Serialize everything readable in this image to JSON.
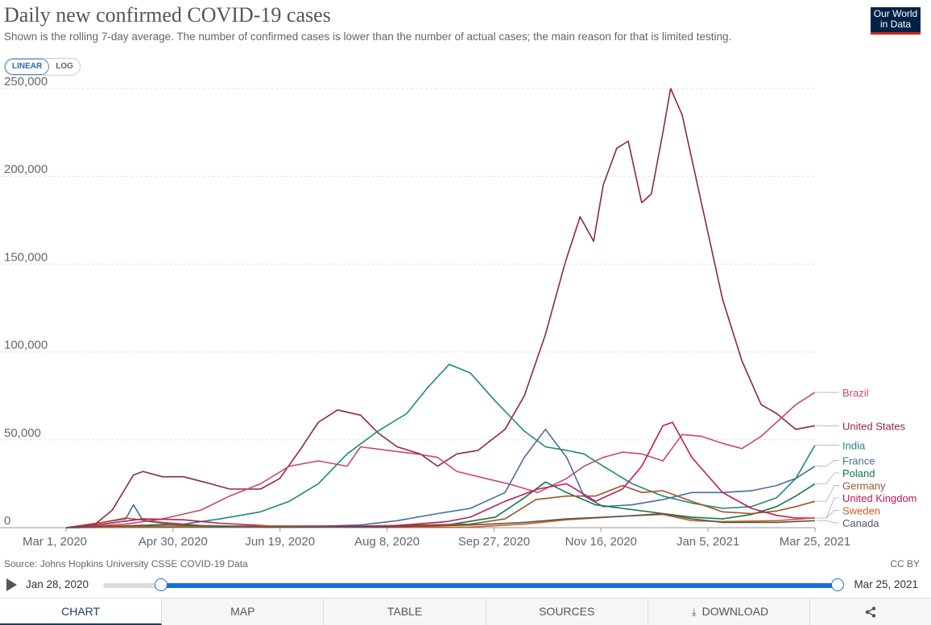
{
  "header": {
    "title": "Daily new confirmed COVID-19 cases",
    "subtitle": "Shown is the rolling 7-day average. The number of confirmed cases is lower than the number of actual cases; the main reason for that is limited testing.",
    "logo_line1": "Our World",
    "logo_line2": "in Data"
  },
  "scale_toggle": {
    "linear": "LINEAR",
    "log": "LOG",
    "active": "linear"
  },
  "footer": {
    "source": "Source: Johns Hopkins University CSSE COVID-19 Data",
    "license": "CC BY"
  },
  "timeline": {
    "start_label": "Jan 28, 2020",
    "end_label": "Mar 25, 2021",
    "selection_start_fraction": 0.079,
    "selection_end_fraction": 1.0
  },
  "tabs": {
    "chart": "CHART",
    "map": "MAP",
    "table": "TABLE",
    "sources": "SOURCES",
    "download": "DOWNLOAD"
  },
  "icons": {
    "play": "play-icon",
    "download": "download-icon",
    "share": "share-icon"
  },
  "chart_data": {
    "type": "line",
    "title": "Daily new confirmed COVID-19 cases",
    "x_ticks": [
      "Mar 1, 2020",
      "Apr 30, 2020",
      "Jun 19, 2020",
      "Aug 8, 2020",
      "Sep 27, 2020",
      "Nov 16, 2020",
      "Jan 5, 2021",
      "Mar 25, 2021"
    ],
    "x_range": [
      "2020-03-01",
      "2021-03-25"
    ],
    "y_ticks": [
      "0",
      "50,000",
      "100,000",
      "150,000",
      "200,000",
      "250,000"
    ],
    "ylim": [
      0,
      250000
    ],
    "grid": "horizontal dashed",
    "legend": "right, labels at line ends",
    "series": [
      {
        "name": "United States",
        "color": "#8c2a3b",
        "points": [
          [
            "2020-03-01",
            0
          ],
          [
            "2020-03-15",
            1000
          ],
          [
            "2020-03-25",
            10000
          ],
          [
            "2020-04-05",
            30000
          ],
          [
            "2020-04-10",
            32000
          ],
          [
            "2020-04-20",
            29000
          ],
          [
            "2020-05-01",
            29000
          ],
          [
            "2020-05-15",
            25000
          ],
          [
            "2020-05-25",
            22000
          ],
          [
            "2020-06-10",
            22000
          ],
          [
            "2020-06-20",
            28000
          ],
          [
            "2020-07-01",
            45000
          ],
          [
            "2020-07-10",
            60000
          ],
          [
            "2020-07-20",
            67000
          ],
          [
            "2020-08-01",
            64000
          ],
          [
            "2020-08-10",
            54000
          ],
          [
            "2020-08-20",
            46000
          ],
          [
            "2020-09-01",
            42000
          ],
          [
            "2020-09-10",
            35000
          ],
          [
            "2020-09-20",
            42000
          ],
          [
            "2020-10-01",
            44000
          ],
          [
            "2020-10-15",
            56000
          ],
          [
            "2020-10-25",
            75000
          ],
          [
            "2020-11-05",
            110000
          ],
          [
            "2020-11-15",
            150000
          ],
          [
            "2020-11-23",
            177000
          ],
          [
            "2020-11-30",
            163000
          ],
          [
            "2020-12-05",
            195000
          ],
          [
            "2020-12-12",
            216000
          ],
          [
            "2020-12-18",
            220000
          ],
          [
            "2020-12-25",
            185000
          ],
          [
            "2020-12-30",
            190000
          ],
          [
            "2021-01-05",
            225000
          ],
          [
            "2021-01-09",
            250000
          ],
          [
            "2021-01-15",
            235000
          ],
          [
            "2021-01-25",
            185000
          ],
          [
            "2021-02-05",
            130000
          ],
          [
            "2021-02-15",
            95000
          ],
          [
            "2021-02-25",
            70000
          ],
          [
            "2021-03-05",
            65000
          ],
          [
            "2021-03-15",
            56000
          ],
          [
            "2021-03-25",
            58000
          ]
        ]
      },
      {
        "name": "Brazil",
        "color": "#c94a64",
        "points": [
          [
            "2020-03-01",
            0
          ],
          [
            "2020-04-01",
            2000
          ],
          [
            "2020-04-20",
            5000
          ],
          [
            "2020-05-10",
            10000
          ],
          [
            "2020-05-25",
            18000
          ],
          [
            "2020-06-10",
            25000
          ],
          [
            "2020-06-25",
            35000
          ],
          [
            "2020-07-10",
            38000
          ],
          [
            "2020-07-25",
            35000
          ],
          [
            "2020-08-01",
            46000
          ],
          [
            "2020-08-15",
            44000
          ],
          [
            "2020-08-30",
            42000
          ],
          [
            "2020-09-10",
            40000
          ],
          [
            "2020-09-20",
            32000
          ],
          [
            "2020-10-05",
            28000
          ],
          [
            "2020-10-20",
            24000
          ],
          [
            "2020-11-01",
            20000
          ],
          [
            "2020-11-16",
            28000
          ],
          [
            "2020-11-25",
            35000
          ],
          [
            "2020-12-05",
            40000
          ],
          [
            "2020-12-15",
            43000
          ],
          [
            "2020-12-25",
            42000
          ],
          [
            "2021-01-05",
            38000
          ],
          [
            "2021-01-15",
            53000
          ],
          [
            "2021-01-25",
            52000
          ],
          [
            "2021-02-05",
            48000
          ],
          [
            "2021-02-15",
            45000
          ],
          [
            "2021-02-25",
            52000
          ],
          [
            "2021-03-05",
            60000
          ],
          [
            "2021-03-15",
            70000
          ],
          [
            "2021-03-25",
            77000
          ]
        ]
      },
      {
        "name": "India",
        "color": "#1c8b7b",
        "points": [
          [
            "2020-03-01",
            0
          ],
          [
            "2020-04-01",
            500
          ],
          [
            "2020-05-01",
            2000
          ],
          [
            "2020-05-20",
            5000
          ],
          [
            "2020-06-10",
            9000
          ],
          [
            "2020-06-25",
            15000
          ],
          [
            "2020-07-10",
            25000
          ],
          [
            "2020-07-25",
            42000
          ],
          [
            "2020-08-10",
            55000
          ],
          [
            "2020-08-25",
            65000
          ],
          [
            "2020-09-05",
            80000
          ],
          [
            "2020-09-16",
            93000
          ],
          [
            "2020-09-27",
            88000
          ],
          [
            "2020-10-10",
            72000
          ],
          [
            "2020-10-25",
            55000
          ],
          [
            "2020-11-05",
            46000
          ],
          [
            "2020-11-16",
            44000
          ],
          [
            "2020-11-25",
            42000
          ],
          [
            "2020-12-05",
            35000
          ],
          [
            "2020-12-20",
            25000
          ],
          [
            "2021-01-05",
            18000
          ],
          [
            "2021-01-20",
            14000
          ],
          [
            "2021-02-05",
            11000
          ],
          [
            "2021-02-20",
            12000
          ],
          [
            "2021-03-05",
            17000
          ],
          [
            "2021-03-15",
            28000
          ],
          [
            "2021-03-25",
            47000
          ]
        ]
      },
      {
        "name": "France",
        "color": "#4c6a9c",
        "points": [
          [
            "2020-03-01",
            0
          ],
          [
            "2020-03-20",
            3000
          ],
          [
            "2020-04-01",
            5000
          ],
          [
            "2020-04-05",
            13000
          ],
          [
            "2020-04-10",
            4000
          ],
          [
            "2020-05-01",
            1000
          ],
          [
            "2020-07-01",
            500
          ],
          [
            "2020-08-01",
            1500
          ],
          [
            "2020-08-20",
            4000
          ],
          [
            "2020-09-10",
            8000
          ],
          [
            "2020-09-27",
            11000
          ],
          [
            "2020-10-15",
            20000
          ],
          [
            "2020-10-25",
            40000
          ],
          [
            "2020-11-05",
            56000
          ],
          [
            "2020-11-16",
            40000
          ],
          [
            "2020-11-25",
            18000
          ],
          [
            "2020-12-05",
            12000
          ],
          [
            "2020-12-20",
            13000
          ],
          [
            "2021-01-05",
            16000
          ],
          [
            "2021-01-20",
            20000
          ],
          [
            "2021-02-05",
            20000
          ],
          [
            "2021-02-20",
            21000
          ],
          [
            "2021-03-05",
            24000
          ],
          [
            "2021-03-15",
            28000
          ],
          [
            "2021-03-25",
            35000
          ]
        ]
      },
      {
        "name": "Poland",
        "color": "#0f7a46",
        "points": [
          [
            "2020-03-01",
            0
          ],
          [
            "2020-05-01",
            400
          ],
          [
            "2020-08-01",
            700
          ],
          [
            "2020-09-15",
            1500
          ],
          [
            "2020-10-10",
            6000
          ],
          [
            "2020-10-25",
            17000
          ],
          [
            "2020-11-05",
            26000
          ],
          [
            "2020-11-16",
            20000
          ],
          [
            "2020-12-01",
            13000
          ],
          [
            "2020-12-15",
            11000
          ],
          [
            "2021-01-05",
            8000
          ],
          [
            "2021-01-20",
            6000
          ],
          [
            "2021-02-05",
            5000
          ],
          [
            "2021-02-20",
            7500
          ],
          [
            "2021-03-05",
            12000
          ],
          [
            "2021-03-15",
            18000
          ],
          [
            "2021-03-25",
            25000
          ]
        ]
      },
      {
        "name": "Germany",
        "color": "#a0522d",
        "points": [
          [
            "2020-03-01",
            0
          ],
          [
            "2020-03-20",
            3000
          ],
          [
            "2020-04-01",
            5500
          ],
          [
            "2020-04-20",
            3000
          ],
          [
            "2020-05-15",
            800
          ],
          [
            "2020-07-15",
            500
          ],
          [
            "2020-08-20",
            1300
          ],
          [
            "2020-09-27",
            2000
          ],
          [
            "2020-10-15",
            5000
          ],
          [
            "2020-10-31",
            16000
          ],
          [
            "2020-11-16",
            18000
          ],
          [
            "2020-12-01",
            18000
          ],
          [
            "2020-12-15",
            24000
          ],
          [
            "2020-12-25",
            20000
          ],
          [
            "2021-01-05",
            21000
          ],
          [
            "2021-01-20",
            15000
          ],
          [
            "2021-02-05",
            9000
          ],
          [
            "2021-02-20",
            8000
          ],
          [
            "2021-03-05",
            9500
          ],
          [
            "2021-03-15",
            12000
          ],
          [
            "2021-03-25",
            15000
          ]
        ]
      },
      {
        "name": "United Kingdom",
        "color": "#c2185b",
        "points": [
          [
            "2020-03-01",
            0
          ],
          [
            "2020-03-20",
            2000
          ],
          [
            "2020-04-10",
            5000
          ],
          [
            "2020-05-01",
            4500
          ],
          [
            "2020-05-20",
            2500
          ],
          [
            "2020-06-15",
            1000
          ],
          [
            "2020-08-15",
            800
          ],
          [
            "2020-09-15",
            3500
          ],
          [
            "2020-09-27",
            6000
          ],
          [
            "2020-10-15",
            15000
          ],
          [
            "2020-11-01",
            22000
          ],
          [
            "2020-11-16",
            25000
          ],
          [
            "2020-12-01",
            15000
          ],
          [
            "2020-12-15",
            22000
          ],
          [
            "2020-12-25",
            35000
          ],
          [
            "2021-01-05",
            58000
          ],
          [
            "2021-01-10",
            60000
          ],
          [
            "2021-01-20",
            40000
          ],
          [
            "2021-02-05",
            20000
          ],
          [
            "2021-02-20",
            11000
          ],
          [
            "2021-03-05",
            7000
          ],
          [
            "2021-03-15",
            5500
          ],
          [
            "2021-03-25",
            5500
          ]
        ]
      },
      {
        "name": "Sweden",
        "color": "#d35c13",
        "points": [
          [
            "2020-03-01",
            0
          ],
          [
            "2020-04-15",
            600
          ],
          [
            "2020-06-15",
            1000
          ],
          [
            "2020-08-01",
            200
          ],
          [
            "2020-09-27",
            300
          ],
          [
            "2020-10-25",
            2000
          ],
          [
            "2020-11-16",
            4500
          ],
          [
            "2020-12-15",
            6500
          ],
          [
            "2021-01-05",
            7500
          ],
          [
            "2021-01-20",
            4000
          ],
          [
            "2021-02-05",
            3500
          ],
          [
            "2021-03-05",
            4000
          ],
          [
            "2021-03-25",
            5500
          ]
        ]
      },
      {
        "name": "Canada",
        "color": "#555555",
        "points": [
          [
            "2020-03-01",
            0
          ],
          [
            "2020-04-20",
            1700
          ],
          [
            "2020-06-15",
            300
          ],
          [
            "2020-08-15",
            400
          ],
          [
            "2020-09-27",
            1500
          ],
          [
            "2020-10-25",
            3000
          ],
          [
            "2020-11-16",
            5000
          ],
          [
            "2020-12-15",
            6500
          ],
          [
            "2021-01-05",
            8000
          ],
          [
            "2021-01-20",
            5000
          ],
          [
            "2021-02-05",
            3000
          ],
          [
            "2021-02-20",
            3000
          ],
          [
            "2021-03-05",
            3000
          ],
          [
            "2021-03-25",
            4000
          ]
        ]
      }
    ]
  }
}
